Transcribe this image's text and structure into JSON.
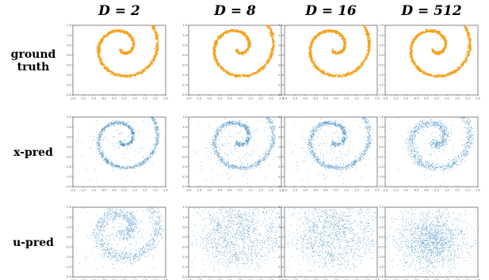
{
  "columns": [
    "D = 2",
    "D = 8",
    "D = 16",
    "D = 512"
  ],
  "rows": [
    {
      "label_lines": [
        "ground",
        "truth"
      ]
    },
    {
      "label_lines": [
        "x-pred"
      ]
    },
    {
      "label_lines": [
        "u-pred"
      ]
    }
  ],
  "colors": {
    "ground_truth": "#f4a21e",
    "prediction": "#1f77b4"
  },
  "chart_data": {
    "type": "scatter",
    "layout": "grid 3x4",
    "xlim": [
      -2.0,
      2.5
    ],
    "ylim": [
      -2.0,
      1.5
    ],
    "x_ticks": [
      "-2.0",
      "-1.5",
      "-1.0",
      "-0.5",
      "0.0",
      "0.5",
      "1.0",
      "1.5",
      "2.0",
      "2.5"
    ],
    "y_ticks": [
      "1.5",
      "1.0",
      "0.5",
      "0.0",
      "-0.5",
      "-1.0",
      "-1.5",
      "-2.0"
    ],
    "shape": "two-turn spiral from center (~0.35, 0.4) winding outward",
    "panels": [
      {
        "row": "ground truth",
        "column": "D = 2",
        "series": "ground-truth",
        "spread": 0.02,
        "scatter": 0.0
      },
      {
        "row": "ground truth",
        "column": "D = 8",
        "series": "ground-truth",
        "spread": 0.02,
        "scatter": 0.0
      },
      {
        "row": "ground truth",
        "column": "D = 16",
        "series": "ground-truth",
        "spread": 0.02,
        "scatter": 0.0
      },
      {
        "row": "ground truth",
        "column": "D = 512",
        "series": "ground-truth",
        "spread": 0.02,
        "scatter": 0.0
      },
      {
        "row": "x-pred",
        "column": "D = 2",
        "series": "x-pred",
        "spread": 0.03,
        "scatter": 0.08
      },
      {
        "row": "x-pred",
        "column": "D = 8",
        "series": "x-pred",
        "spread": 0.04,
        "scatter": 0.12
      },
      {
        "row": "x-pred",
        "column": "D = 16",
        "series": "x-pred",
        "spread": 0.04,
        "scatter": 0.12
      },
      {
        "row": "x-pred",
        "column": "D = 512",
        "series": "x-pred",
        "spread": 0.07,
        "scatter": 0.06
      },
      {
        "row": "u-pred",
        "column": "D = 2",
        "series": "u-pred",
        "spread": 0.1,
        "scatter": 0.1
      },
      {
        "row": "u-pred",
        "column": "D = 8",
        "series": "u-pred",
        "spread": 0.22,
        "scatter": 0.3
      },
      {
        "row": "u-pred",
        "column": "D = 16",
        "series": "u-pred",
        "spread": 0.25,
        "scatter": 0.3
      },
      {
        "row": "u-pred",
        "column": "D = 512",
        "series": "u-pred",
        "spread": 0.0,
        "scatter": 1.0
      }
    ]
  }
}
